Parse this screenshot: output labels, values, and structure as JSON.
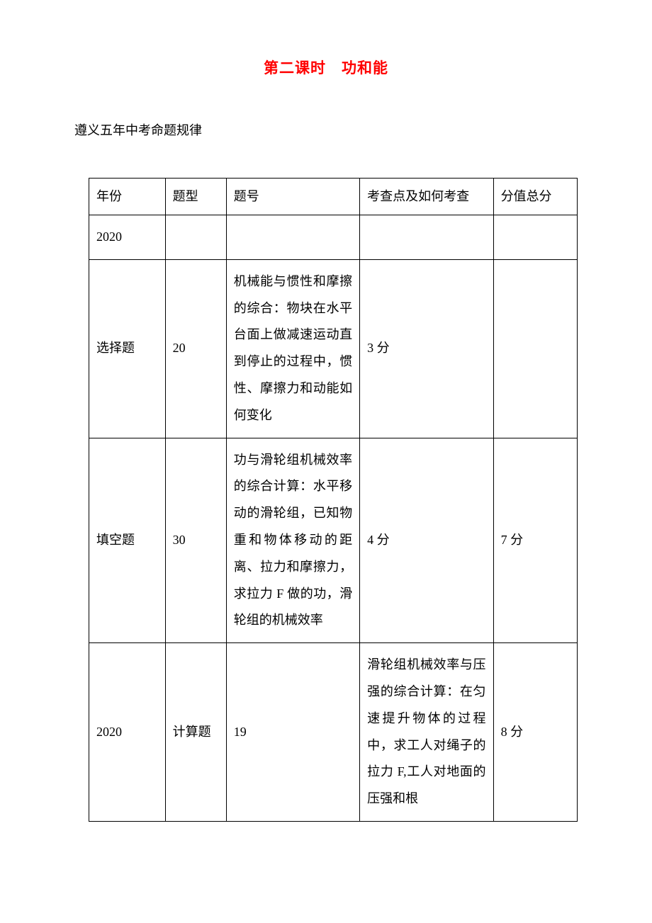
{
  "title": "第二课时　功和能",
  "subtitle": "遵义五年中考命题规律",
  "table": {
    "columns": {
      "width_year": 100,
      "width_type": 80,
      "width_num": 175,
      "width_point": 175,
      "width_score": 110
    },
    "headers": {
      "year": "年份",
      "type": "题型",
      "num": "题号",
      "point": "考查点及如何考查",
      "score": "分值总分"
    },
    "rows": [
      {
        "year": "2020",
        "type": "",
        "num": "",
        "point": "",
        "score": ""
      },
      {
        "type": "选择题",
        "num": "20",
        "point": "机械能与惯性和摩擦的综合：物块在水平台面上做减速运动直到停止的过程中，惯性、摩擦力和动能如何变化",
        "score": "3 分"
      },
      {
        "type": "填空题",
        "num": "30",
        "point": "功与滑轮组机械效率的综合计算：水平移动的滑轮组，已知物重和物体移动的距离、拉力和摩擦力，求拉力 F 做的功，滑轮组的机械效率",
        "score": "4 分",
        "total": "7 分"
      },
      {
        "year": "2020",
        "type": "计算题",
        "num": "19",
        "point": "滑轮组机械效率与压强的综合计算：在匀速提升物体的过程中，求工人对绳子的拉力 F,工人对地面的压强和根",
        "score": "8 分"
      }
    ]
  },
  "colors": {
    "title_color": "#ff0000",
    "text_color": "#000000",
    "border_color": "#000000",
    "background": "#ffffff"
  },
  "typography": {
    "title_fontsize": 21,
    "body_fontsize": 18,
    "font_family": "SimSun"
  }
}
